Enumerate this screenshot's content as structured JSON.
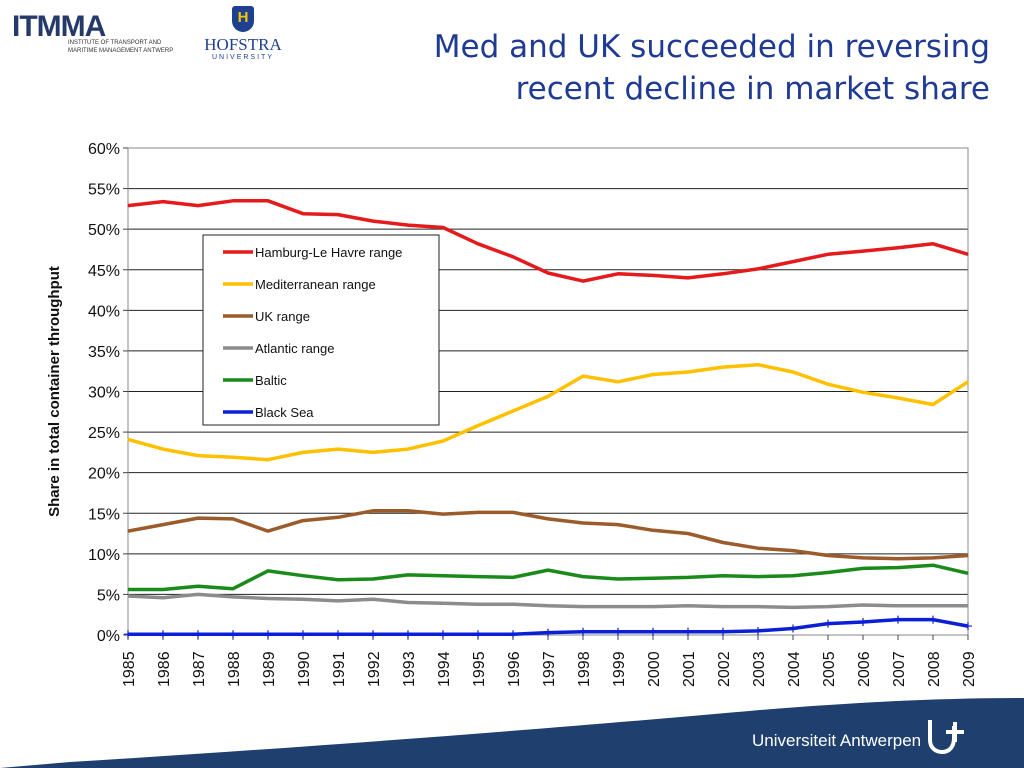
{
  "slide": {
    "title_line1": "Med and UK succeeded in reversing",
    "title_line2": "recent decline in market share"
  },
  "logos": {
    "itmma": "ITMMA",
    "itmma_tag1": "INSTITUTE OF TRANSPORT AND",
    "itmma_tag2": "MARITIME MANAGEMENT ANTWERP",
    "hofstra_mark": "H",
    "hofstra": "HOFSTRA",
    "hofstra_sub": "UNIVERSITY",
    "university": "Universiteit Antwerpen"
  },
  "colors": {
    "title": "#1f3a93",
    "footer": "#1f3f6e"
  },
  "chart_data": {
    "type": "line",
    "ylabel": "Share in total container throughput",
    "xlabel": "",
    "ylim": [
      0,
      60
    ],
    "yticks": [
      0,
      5,
      10,
      15,
      20,
      25,
      30,
      35,
      40,
      45,
      50,
      55,
      60
    ],
    "ytick_labels": [
      "0%",
      "5%",
      "10%",
      "15%",
      "20%",
      "25%",
      "30%",
      "35%",
      "40%",
      "45%",
      "50%",
      "55%",
      "60%"
    ],
    "grid": true,
    "legend_position": "upper-left",
    "x": [
      "1985",
      "1986",
      "1987",
      "1988",
      "1989",
      "1990",
      "1991",
      "1992",
      "1993",
      "1994",
      "1995",
      "1996",
      "1997",
      "1998",
      "1999",
      "2000",
      "2001",
      "2002",
      "2003",
      "2004",
      "2005",
      "2006",
      "2007",
      "2008",
      "2009"
    ],
    "series": [
      {
        "name": "Hamburg-Le Havre range",
        "color": "#e41a1c",
        "values": [
          52.9,
          53.4,
          52.9,
          53.5,
          53.5,
          51.9,
          51.8,
          51.0,
          50.5,
          50.2,
          48.2,
          46.6,
          44.6,
          43.6,
          44.5,
          44.3,
          44.0,
          44.5,
          45.1,
          46.0,
          46.9,
          47.3,
          47.7,
          48.2,
          46.9
        ]
      },
      {
        "name": "Mediterranean range",
        "color": "#ffc000",
        "values": [
          24.1,
          22.9,
          22.1,
          21.9,
          21.6,
          22.5,
          22.9,
          22.5,
          22.9,
          23.9,
          25.8,
          27.6,
          29.4,
          31.9,
          31.2,
          32.1,
          32.4,
          33.0,
          33.3,
          32.4,
          30.9,
          29.9,
          29.2,
          28.4,
          31.2
        ]
      },
      {
        "name": "UK range",
        "color": "#9c5b2a",
        "values": [
          12.8,
          13.6,
          14.4,
          14.3,
          12.8,
          14.1,
          14.5,
          15.3,
          15.3,
          14.9,
          15.1,
          15.1,
          14.3,
          13.8,
          13.6,
          12.9,
          12.5,
          11.4,
          10.7,
          10.4,
          9.8,
          9.5,
          9.4,
          9.5,
          9.8
        ]
      },
      {
        "name": "Atlantic range",
        "color": "#8c8c8c",
        "values": [
          4.8,
          4.6,
          5.0,
          4.7,
          4.5,
          4.4,
          4.2,
          4.4,
          4.0,
          3.9,
          3.8,
          3.8,
          3.6,
          3.5,
          3.5,
          3.5,
          3.6,
          3.5,
          3.5,
          3.4,
          3.5,
          3.7,
          3.6,
          3.6,
          3.6
        ]
      },
      {
        "name": "Baltic",
        "color": "#1a8a1a",
        "values": [
          5.6,
          5.6,
          6.0,
          5.7,
          7.9,
          7.3,
          6.8,
          6.9,
          7.4,
          7.3,
          7.2,
          7.1,
          8.0,
          7.2,
          6.9,
          7.0,
          7.1,
          7.3,
          7.2,
          7.3,
          7.7,
          8.2,
          8.3,
          8.6,
          7.6
        ]
      },
      {
        "name": "Black Sea",
        "color": "#0b1fd6",
        "values": [
          0.1,
          0.1,
          0.1,
          0.1,
          0.1,
          0.1,
          0.1,
          0.1,
          0.1,
          0.1,
          0.1,
          0.1,
          0.3,
          0.4,
          0.4,
          0.4,
          0.4,
          0.4,
          0.5,
          0.8,
          1.4,
          1.6,
          1.9,
          1.9,
          1.1
        ]
      }
    ]
  }
}
